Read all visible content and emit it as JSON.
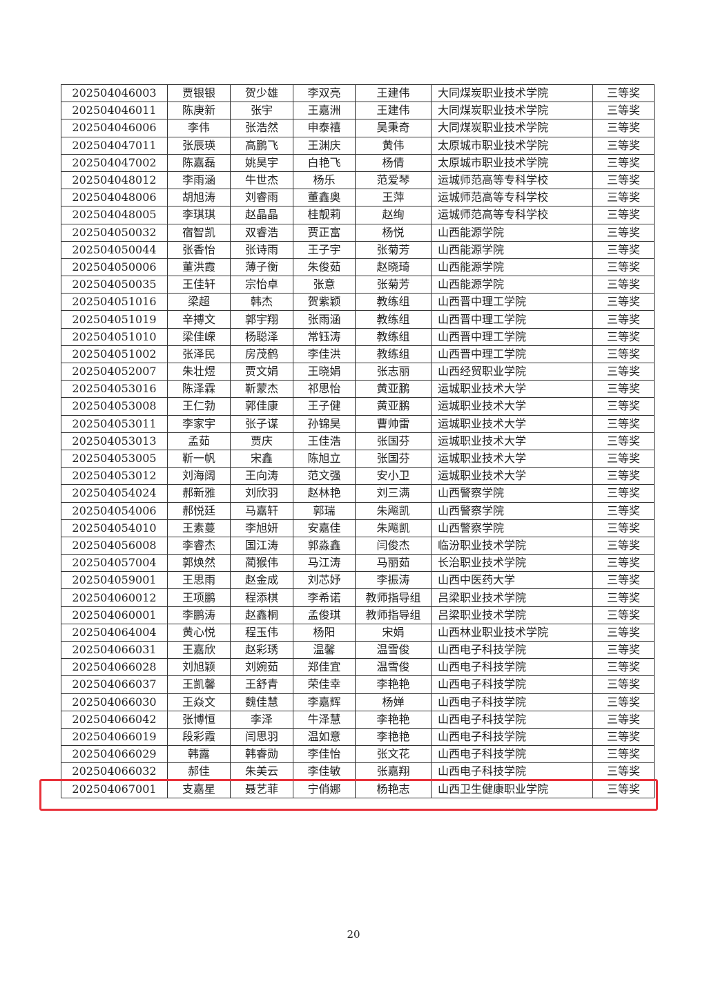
{
  "table": {
    "rows": [
      [
        "202504046003",
        "贾银银",
        "贺少雄",
        "李双亮",
        "王建伟",
        "大同煤炭职业技术学院",
        "三等奖"
      ],
      [
        "202504046011",
        "陈庚新",
        "张宇",
        "王嘉洲",
        "王建伟",
        "大同煤炭职业技术学院",
        "三等奖"
      ],
      [
        "202504046006",
        "李伟",
        "张浩然",
        "申泰禧",
        "吴秉奇",
        "大同煤炭职业技术学院",
        "三等奖"
      ],
      [
        "202504047011",
        "张辰瑛",
        "高鹏飞",
        "王渊庆",
        "黄伟",
        "太原城市职业技术学院",
        "三等奖"
      ],
      [
        "202504047002",
        "陈嘉磊",
        "姚昊宇",
        "白艳飞",
        "杨倩",
        "太原城市职业技术学院",
        "三等奖"
      ],
      [
        "202504048012",
        "李雨涵",
        "牛世杰",
        "杨乐",
        "范爱琴",
        "运城师范高等专科学校",
        "三等奖"
      ],
      [
        "202504048006",
        "胡旭涛",
        "刘睿雨",
        "董鑫奥",
        "王萍",
        "运城师范高等专科学校",
        "三等奖"
      ],
      [
        "202504048005",
        "李琪琪",
        "赵晶晶",
        "桂靓莉",
        "赵绚",
        "运城师范高等专科学校",
        "三等奖"
      ],
      [
        "202504050032",
        "宿智凯",
        "双睿浩",
        "贾正富",
        "杨悦",
        "山西能源学院",
        "三等奖"
      ],
      [
        "202504050044",
        "张香怡",
        "张诗雨",
        "王子宇",
        "张菊芳",
        "山西能源学院",
        "三等奖"
      ],
      [
        "202504050006",
        "董洪霞",
        "薄子衡",
        "朱俊茹",
        "赵晓琦",
        "山西能源学院",
        "三等奖"
      ],
      [
        "202504050035",
        "王佳轩",
        "宗怡卓",
        "张意",
        "张菊芳",
        "山西能源学院",
        "三等奖"
      ],
      [
        "202504051016",
        "梁超",
        "韩杰",
        "贺紫颖",
        "教练组",
        "山西晋中理工学院",
        "三等奖"
      ],
      [
        "202504051019",
        "辛搏文",
        "郭宇翔",
        "张雨涵",
        "教练组",
        "山西晋中理工学院",
        "三等奖"
      ],
      [
        "202504051010",
        "梁佳嵘",
        "杨聪泽",
        "常钰涛",
        "教练组",
        "山西晋中理工学院",
        "三等奖"
      ],
      [
        "202504051002",
        "张泽民",
        "房茂鹤",
        "李佳洪",
        "教练组",
        "山西晋中理工学院",
        "三等奖"
      ],
      [
        "202504052007",
        "朱壮煜",
        "贾文娟",
        "王晓娟",
        "张志丽",
        "山西经贸职业学院",
        "三等奖"
      ],
      [
        "202504053016",
        "陈泽霖",
        "靳蒙杰",
        "祁思怡",
        "黄亚鹏",
        "运城职业技术大学",
        "三等奖"
      ],
      [
        "202504053008",
        "王仁勃",
        "郭佳康",
        "王子健",
        "黄亚鹏",
        "运城职业技术大学",
        "三等奖"
      ],
      [
        "202504053011",
        "李家宇",
        "张子谋",
        "孙锦昊",
        "曹帅雷",
        "运城职业技术大学",
        "三等奖"
      ],
      [
        "202504053013",
        "孟茹",
        "贾庆",
        "王佳浩",
        "张国芬",
        "运城职业技术大学",
        "三等奖"
      ],
      [
        "202504053005",
        "靳一帆",
        "宋鑫",
        "陈旭立",
        "张国芬",
        "运城职业技术大学",
        "三等奖"
      ],
      [
        "202504053012",
        "刘海阔",
        "王向涛",
        "范文强",
        "安小卫",
        "运城职业技术大学",
        "三等奖"
      ],
      [
        "202504054024",
        "郝新雅",
        "刘欣羽",
        "赵林艳",
        "刘三满",
        "山西警察学院",
        "三等奖"
      ],
      [
        "202504054006",
        "郝悦廷",
        "马嘉轩",
        "郭瑞",
        "朱飚凯",
        "山西警察学院",
        "三等奖"
      ],
      [
        "202504054010",
        "王素蔓",
        "李旭妍",
        "安嘉佳",
        "朱飚凯",
        "山西警察学院",
        "三等奖"
      ],
      [
        "202504056008",
        "李睿杰",
        "国江涛",
        "郭淼鑫",
        "闫俊杰",
        "临汾职业技术学院",
        "三等奖"
      ],
      [
        "202504057004",
        "郭焕然",
        "蔺猴伟",
        "马江涛",
        "马丽茹",
        "长治职业技术学院",
        "三等奖"
      ],
      [
        "202504059001",
        "王思雨",
        "赵金成",
        "刘芯妤",
        "李振涛",
        "山西中医药大学",
        "三等奖"
      ],
      [
        "202504060012",
        "王项鹏",
        "程添棋",
        "李希诺",
        "教师指导组",
        "吕梁职业技术学院",
        "三等奖"
      ],
      [
        "202504060001",
        "李鹏涛",
        "赵鑫桐",
        "孟俊琪",
        "教师指导组",
        "吕梁职业技术学院",
        "三等奖"
      ],
      [
        "202504064004",
        "黄心悦",
        "程玉伟",
        "杨阳",
        "宋娟",
        "山西林业职业技术学院",
        "三等奖"
      ],
      [
        "202504066031",
        "王嘉欣",
        "赵彩琇",
        "温馨",
        "温雪俊",
        "山西电子科技学院",
        "三等奖"
      ],
      [
        "202504066028",
        "刘旭颖",
        "刘婉茹",
        "郑佳宜",
        "温雪俊",
        "山西电子科技学院",
        "三等奖"
      ],
      [
        "202504066037",
        "王凯馨",
        "王舒青",
        "荣佳幸",
        "李艳艳",
        "山西电子科技学院",
        "三等奖"
      ],
      [
        "202504066030",
        "王焱文",
        "魏佳慧",
        "李嘉辉",
        "杨婵",
        "山西电子科技学院",
        "三等奖"
      ],
      [
        "202504066042",
        "张博恒",
        "李泽",
        "牛泽慧",
        "李艳艳",
        "山西电子科技学院",
        "三等奖"
      ],
      [
        "202504066019",
        "段彩霞",
        "闫思羽",
        "温如意",
        "李艳艳",
        "山西电子科技学院",
        "三等奖"
      ],
      [
        "202504066029",
        "韩露",
        "韩睿勋",
        "李佳怡",
        "张文花",
        "山西电子科技学院",
        "三等奖"
      ],
      [
        "202504066032",
        "郝佳",
        "朱美云",
        "李佳敏",
        "张嘉翔",
        "山西电子科技学院",
        "三等奖"
      ],
      [
        "202504067001",
        "支嘉星",
        "聂艺菲",
        "宁俏娜",
        "杨艳志",
        "山西卫生健康职业学院",
        "三等奖"
      ]
    ]
  },
  "footer": {
    "page_number": "20"
  }
}
